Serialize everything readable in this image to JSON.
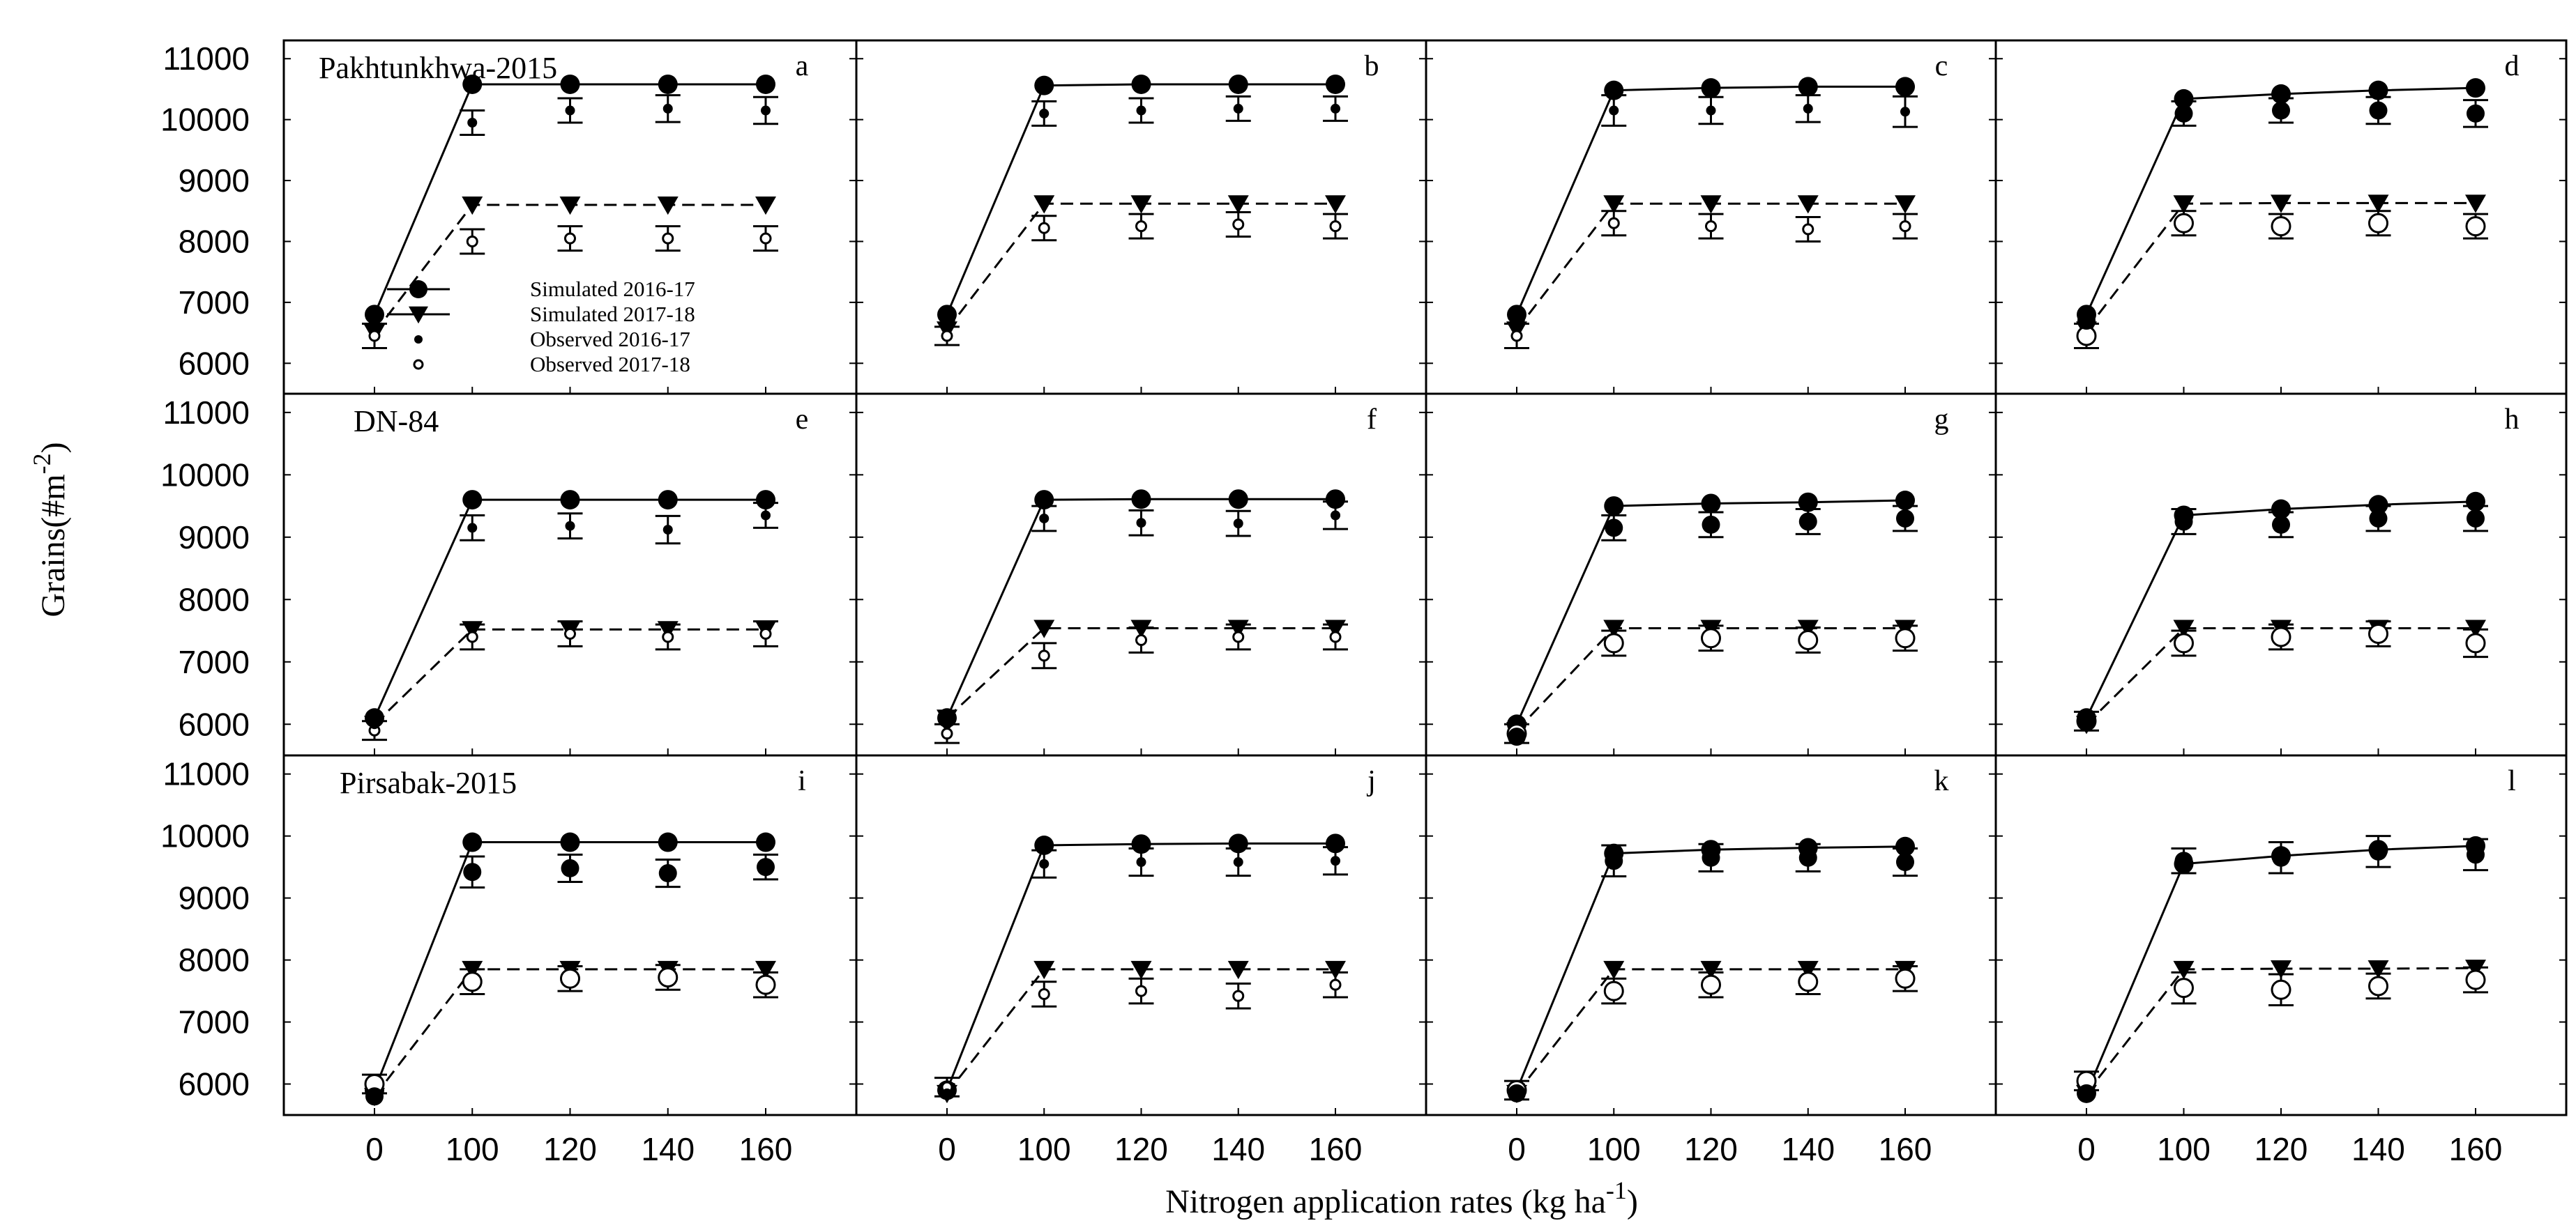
{
  "chart_data": {
    "type": "line",
    "panel_grid": "3 rows x 4 columns",
    "x": [
      0,
      100,
      120,
      140,
      160
    ],
    "x_tick_labels": [
      "0",
      "100",
      "120",
      "140",
      "160"
    ],
    "y_tick_labels": [
      "6000",
      "7000",
      "8000",
      "9000",
      "10000",
      "11000"
    ],
    "ylim": [
      5500,
      11300
    ],
    "xlabel": "Nitrogen application rates (kg ha",
    "xlabel_superscript": "-1",
    "xlabel_suffix": ")",
    "ylabel": "Grains(#m",
    "ylabel_superscript": "-2",
    "ylabel_suffix": ")",
    "legend": {
      "location": "top-left panel, lower-left",
      "entries": [
        {
          "label": "Simulated 2016-17",
          "marker": "filled-circle",
          "line": "solid"
        },
        {
          "label": "Simulated 2017-18",
          "marker": "filled-triangle-down",
          "line": "solid"
        },
        {
          "label": "Observed 2016-17",
          "marker": "small-filled-circle",
          "line": "none"
        },
        {
          "label": "Observed 2017-18",
          "marker": "small-open-circle",
          "line": "none"
        }
      ]
    },
    "rows": [
      {
        "cultivar_label": "Pakhtunkhwa-2015"
      },
      {
        "cultivar_label": "DN-84"
      },
      {
        "cultivar_label": "Pirsabak-2015"
      }
    ],
    "panels": [
      {
        "letter": "a",
        "row": 0,
        "col": 0,
        "obs_marker": "small",
        "sim1": [
          6800,
          10580,
          10580,
          10580,
          10580
        ],
        "sim2": [
          6500,
          8600,
          8600,
          8600,
          8600
        ],
        "obs1": [
          6800,
          9950,
          10150,
          10180,
          10150
        ],
        "obs1_err": [
          0,
          200,
          200,
          220,
          220
        ],
        "obs2": [
          6450,
          8000,
          8050,
          8050,
          8050
        ],
        "obs2_err": [
          200,
          200,
          200,
          200,
          200
        ]
      },
      {
        "letter": "b",
        "row": 0,
        "col": 1,
        "obs_marker": "small",
        "sim1": [
          6800,
          10560,
          10580,
          10580,
          10580
        ],
        "sim2": [
          6550,
          8620,
          8620,
          8620,
          8620
        ],
        "obs1": [
          6800,
          10100,
          10150,
          10180,
          10180
        ],
        "obs1_err": [
          0,
          200,
          200,
          200,
          200
        ],
        "obs2": [
          6450,
          8220,
          8250,
          8280,
          8250
        ],
        "obs2_err": [
          150,
          200,
          200,
          200,
          200
        ]
      },
      {
        "letter": "c",
        "row": 0,
        "col": 2,
        "obs_marker": "small",
        "sim1": [
          6800,
          10480,
          10520,
          10540,
          10540
        ],
        "sim2": [
          6550,
          8620,
          8620,
          8620,
          8620
        ],
        "obs1": [
          6800,
          10150,
          10150,
          10180,
          10130
        ],
        "obs1_err": [
          0,
          250,
          220,
          220,
          250
        ],
        "obs2": [
          6450,
          8300,
          8250,
          8200,
          8250
        ],
        "obs2_err": [
          200,
          200,
          200,
          200,
          200
        ]
      },
      {
        "letter": "d",
        "row": 0,
        "col": 3,
        "obs_marker": "large",
        "sim1": [
          6800,
          10340,
          10420,
          10480,
          10520
        ],
        "sim2": [
          6550,
          8620,
          8630,
          8630,
          8630
        ],
        "obs1": [
          6700,
          10100,
          10150,
          10150,
          10100
        ],
        "obs1_err": [
          0,
          200,
          200,
          220,
          220
        ],
        "obs2": [
          6450,
          8300,
          8250,
          8300,
          8250
        ],
        "obs2_err": [
          200,
          200,
          200,
          200,
          200
        ]
      },
      {
        "letter": "e",
        "row": 1,
        "col": 0,
        "obs_marker": "small",
        "sim1": [
          6100,
          9600,
          9600,
          9600,
          9600
        ],
        "sim2": [
          6000,
          7520,
          7520,
          7520,
          7520
        ],
        "obs1": [
          6000,
          9150,
          9180,
          9120,
          9350
        ],
        "obs1_err": [
          0,
          200,
          200,
          220,
          200
        ],
        "obs2": [
          5900,
          7400,
          7450,
          7400,
          7450
        ],
        "obs2_err": [
          150,
          200,
          200,
          200,
          200
        ]
      },
      {
        "letter": "f",
        "row": 1,
        "col": 1,
        "obs_marker": "small",
        "sim1": [
          6100,
          9600,
          9610,
          9610,
          9610
        ],
        "sim2": [
          6100,
          7540,
          7540,
          7540,
          7540
        ],
        "obs1": [
          6000,
          9300,
          9230,
          9220,
          9350
        ],
        "obs1_err": [
          0,
          200,
          200,
          200,
          220
        ],
        "obs2": [
          5850,
          7100,
          7350,
          7400,
          7400
        ],
        "obs2_err": [
          150,
          200,
          200,
          200,
          200
        ]
      },
      {
        "letter": "g",
        "row": 1,
        "col": 2,
        "obs_marker": "large",
        "sim1": [
          6000,
          9500,
          9540,
          9560,
          9590
        ],
        "sim2": [
          5900,
          7540,
          7540,
          7540,
          7540
        ],
        "obs1": [
          5800,
          9150,
          9200,
          9250,
          9300
        ],
        "obs1_err": [
          0,
          200,
          200,
          200,
          200
        ],
        "obs2": [
          5850,
          7300,
          7380,
          7350,
          7380
        ],
        "obs2_err": [
          150,
          200,
          200,
          200,
          200
        ]
      },
      {
        "letter": "h",
        "row": 1,
        "col": 3,
        "obs_marker": "large",
        "sim1": [
          6100,
          9350,
          9450,
          9520,
          9570
        ],
        "sim2": [
          6000,
          7540,
          7540,
          7540,
          7540
        ],
        "obs1": [
          6050,
          9250,
          9200,
          9300,
          9300
        ],
        "obs1_err": [
          0,
          200,
          200,
          200,
          200
        ],
        "obs2": [
          6050,
          7300,
          7400,
          7450,
          7300
        ],
        "obs2_err": [
          150,
          200,
          200,
          200,
          220
        ]
      },
      {
        "letter": "i",
        "row": 2,
        "col": 0,
        "obs_marker": "large",
        "sim1": [
          5900,
          9900,
          9900,
          9900,
          9900
        ],
        "sim2": [
          5800,
          7850,
          7850,
          7850,
          7850
        ],
        "obs1": [
          5800,
          9420,
          9480,
          9400,
          9500
        ],
        "obs1_err": [
          0,
          250,
          220,
          220,
          200
        ],
        "obs2": [
          6000,
          7650,
          7700,
          7720,
          7600
        ],
        "obs2_err": [
          150,
          200,
          200,
          200,
          200
        ]
      },
      {
        "letter": "j",
        "row": 2,
        "col": 1,
        "obs_marker": "small",
        "sim1": [
          5900,
          9850,
          9870,
          9880,
          9880
        ],
        "sim2": [
          5850,
          7850,
          7850,
          7850,
          7850
        ],
        "obs1": [
          5850,
          9550,
          9580,
          9580,
          9600
        ],
        "obs1_err": [
          0,
          220,
          220,
          220,
          220
        ],
        "obs2": [
          5950,
          7450,
          7500,
          7420,
          7600
        ],
        "obs2_err": [
          150,
          200,
          200,
          200,
          200
        ]
      },
      {
        "letter": "k",
        "row": 2,
        "col": 2,
        "obs_marker": "large",
        "sim1": [
          5900,
          9720,
          9780,
          9810,
          9830
        ],
        "sim2": [
          5850,
          7850,
          7850,
          7850,
          7850
        ],
        "obs1": [
          5850,
          9600,
          9650,
          9650,
          9580
        ],
        "obs1_err": [
          0,
          250,
          220,
          220,
          220
        ],
        "obs2": [
          5900,
          7500,
          7600,
          7650,
          7700
        ],
        "obs2_err": [
          150,
          200,
          200,
          200,
          200
        ]
      },
      {
        "letter": "l",
        "row": 2,
        "col": 3,
        "obs_marker": "large",
        "sim1": [
          5850,
          9550,
          9680,
          9780,
          9840
        ],
        "sim2": [
          5850,
          7850,
          7860,
          7860,
          7870
        ],
        "obs1": [
          5850,
          9600,
          9650,
          9750,
          9700
        ],
        "obs1_err": [
          0,
          200,
          250,
          250,
          250
        ],
        "obs2": [
          6050,
          7550,
          7520,
          7580,
          7680
        ],
        "obs2_err": [
          150,
          250,
          250,
          200,
          200
        ]
      }
    ]
  }
}
